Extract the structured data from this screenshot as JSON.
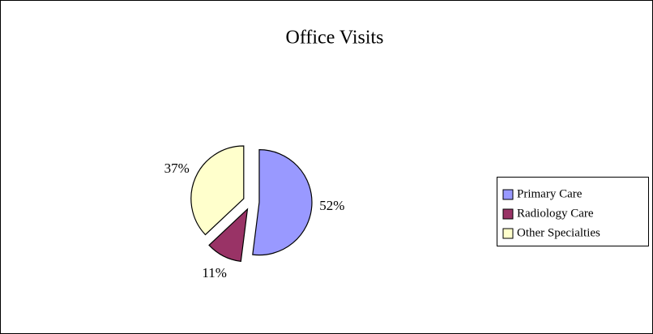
{
  "chart_data": {
    "type": "pie",
    "title": "Office Visits",
    "categories": [
      "Primary Care",
      "Radiology Care",
      "Other Specialties"
    ],
    "values": [
      52,
      11,
      37
    ],
    "value_labels": [
      "52%",
      "11%",
      "37%"
    ],
    "colors": [
      "#9999ff",
      "#993366",
      "#ffffcc"
    ],
    "legend": "right"
  }
}
